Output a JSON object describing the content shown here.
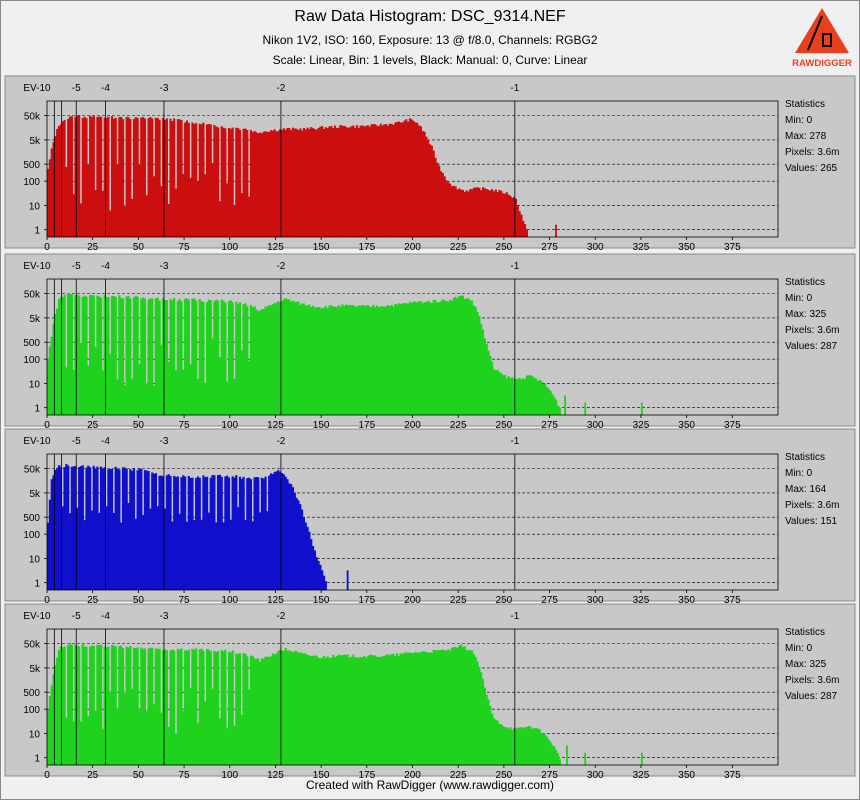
{
  "title": "Raw Data Histogram: DSC_9314.NEF",
  "subtitle_1": "Nikon 1V2, ISO: 160, Exposure: 13 @ f/8.0, Channels: RGBG2",
  "subtitle_2": "Scale: Linear, Bin: 1 levels, Black: Manual: 0, Curve: Linear",
  "footer": "Created with RawDigger (www.rawdigger.com)",
  "logo": {
    "text": "RAWDIGGER",
    "color": "#e8401c"
  },
  "colors": {
    "plot_bg": "#c8c8c8",
    "red": "#cc0e0e",
    "green": "#1ed21e",
    "blue": "#1010cc",
    "page_bg": "#f0f0f0"
  },
  "chart_data": [
    {
      "type": "bar",
      "channel": "R",
      "color": "#cc0e0e",
      "xlim": [
        0,
        400
      ],
      "y_scale": "log",
      "ylim": [
        0.5,
        200000
      ],
      "x_ticks": [
        "0",
        "25",
        "50",
        "75",
        "100",
        "125",
        "150",
        "175",
        "200",
        "225",
        "250",
        "275",
        "300",
        "325",
        "350",
        "375"
      ],
      "y_ticks": [
        "1",
        "10",
        "100",
        "500",
        "5k",
        "50k"
      ],
      "ev_marks": [
        {
          "label": "EV-10",
          "x": 0
        },
        {
          "label": "-5",
          "x": 8
        },
        {
          "label": "-4",
          "x": 16
        },
        {
          "label": "-3",
          "x": 32
        },
        {
          "label": "-2",
          "x": 64
        },
        {
          "label": "-1",
          "x": 128
        }
      ],
      "ev_ref_levels": [
        4,
        8,
        16,
        32,
        64,
        128,
        256
      ],
      "envelope": [
        [
          0,
          300
        ],
        [
          2,
          2000
        ],
        [
          4,
          8000
        ],
        [
          6,
          20000
        ],
        [
          8,
          30000
        ],
        [
          10,
          40000
        ],
        [
          15,
          48000
        ],
        [
          20,
          45000
        ],
        [
          30,
          44000
        ],
        [
          40,
          42000
        ],
        [
          50,
          40000
        ],
        [
          60,
          38000
        ],
        [
          70,
          34000
        ],
        [
          80,
          26000
        ],
        [
          90,
          20000
        ],
        [
          100,
          16000
        ],
        [
          110,
          14000
        ],
        [
          112,
          12000
        ],
        [
          114,
          10000
        ],
        [
          120,
          12000
        ],
        [
          130,
          14000
        ],
        [
          140,
          14000
        ],
        [
          150,
          16000
        ],
        [
          160,
          18000
        ],
        [
          170,
          18000
        ],
        [
          180,
          20000
        ],
        [
          190,
          24000
        ],
        [
          198,
          34000
        ],
        [
          202,
          26000
        ],
        [
          206,
          10000
        ],
        [
          210,
          2500
        ],
        [
          214,
          400
        ],
        [
          218,
          120
        ],
        [
          222,
          60
        ],
        [
          228,
          40
        ],
        [
          235,
          50
        ],
        [
          240,
          48
        ],
        [
          246,
          40
        ],
        [
          252,
          30
        ],
        [
          256,
          18
        ],
        [
          259,
          4
        ],
        [
          262,
          1
        ],
        [
          264,
          0
        ]
      ],
      "dips": {
        "start": 10,
        "end": 112,
        "step": 4,
        "min": 6,
        "max": 700
      },
      "spikes": [
        {
          "x": 278,
          "count": 1
        }
      ],
      "statistics": {
        "heading": "Statistics",
        "min": "Min: 0",
        "max": "Max: 278",
        "pixels": "Pixels: 3.6m",
        "values": "Values: 265"
      }
    },
    {
      "type": "bar",
      "channel": "G",
      "color": "#1ed21e",
      "xlim": [
        0,
        400
      ],
      "y_scale": "log",
      "ylim": [
        0.5,
        200000
      ],
      "x_ticks": [
        "0",
        "25",
        "50",
        "75",
        "100",
        "125",
        "150",
        "175",
        "200",
        "225",
        "250",
        "275",
        "300",
        "325",
        "350",
        "375"
      ],
      "y_ticks": [
        "1",
        "10",
        "100",
        "500",
        "5k",
        "50k"
      ],
      "ev_marks": [
        {
          "label": "EV-10",
          "x": 0
        },
        {
          "label": "-5",
          "x": 8
        },
        {
          "label": "-4",
          "x": 16
        },
        {
          "label": "-3",
          "x": 32
        },
        {
          "label": "-2",
          "x": 64
        },
        {
          "label": "-1",
          "x": 128
        }
      ],
      "ev_ref_levels": [
        4,
        8,
        16,
        32,
        64,
        128,
        256
      ],
      "envelope": [
        [
          0,
          100
        ],
        [
          3,
          3000
        ],
        [
          6,
          30000
        ],
        [
          10,
          50000
        ],
        [
          15,
          45000
        ],
        [
          25,
          40000
        ],
        [
          40,
          38000
        ],
        [
          60,
          30000
        ],
        [
          80,
          28000
        ],
        [
          100,
          24000
        ],
        [
          112,
          15000
        ],
        [
          116,
          10000
        ],
        [
          125,
          22000
        ],
        [
          130,
          30000
        ],
        [
          140,
          18000
        ],
        [
          150,
          14000
        ],
        [
          160,
          16000
        ],
        [
          175,
          15000
        ],
        [
          190,
          17000
        ],
        [
          200,
          22000
        ],
        [
          210,
          24000
        ],
        [
          220,
          28000
        ],
        [
          226,
          40000
        ],
        [
          232,
          26000
        ],
        [
          236,
          6000
        ],
        [
          240,
          400
        ],
        [
          244,
          40
        ],
        [
          250,
          20
        ],
        [
          256,
          15
        ],
        [
          264,
          20
        ],
        [
          270,
          12
        ],
        [
          275,
          5
        ],
        [
          278,
          2
        ],
        [
          280,
          1
        ],
        [
          282,
          0
        ]
      ],
      "dips": {
        "start": 10,
        "end": 112,
        "step": 4,
        "min": 8,
        "max": 900
      },
      "spikes": [
        {
          "x": 283,
          "count": 2
        },
        {
          "x": 294,
          "count": 1
        },
        {
          "x": 325,
          "count": 1
        }
      ],
      "statistics": {
        "heading": "Statistics",
        "min": "Min: 0",
        "max": "Max: 325",
        "pixels": "Pixels: 3.6m",
        "values": "Values: 287"
      }
    },
    {
      "type": "bar",
      "channel": "B",
      "color": "#1010cc",
      "xlim": [
        0,
        400
      ],
      "y_scale": "log",
      "ylim": [
        0.5,
        200000
      ],
      "x_ticks": [
        "0",
        "25",
        "50",
        "75",
        "100",
        "125",
        "150",
        "175",
        "200",
        "225",
        "250",
        "275",
        "300",
        "325",
        "350",
        "375"
      ],
      "y_ticks": [
        "1",
        "10",
        "100",
        "500",
        "5k",
        "50k"
      ],
      "ev_marks": [
        {
          "label": "EV-10",
          "x": 0
        },
        {
          "label": "-5",
          "x": 8
        },
        {
          "label": "-4",
          "x": 16
        },
        {
          "label": "-3",
          "x": 32
        },
        {
          "label": "-2",
          "x": 64
        },
        {
          "label": "-1",
          "x": 128
        }
      ],
      "ev_ref_levels": [
        4,
        8,
        16,
        32,
        64,
        128,
        256
      ],
      "envelope": [
        [
          0,
          300
        ],
        [
          2,
          20000
        ],
        [
          5,
          60000
        ],
        [
          10,
          70000
        ],
        [
          20,
          60000
        ],
        [
          30,
          55000
        ],
        [
          40,
          50000
        ],
        [
          50,
          45000
        ],
        [
          60,
          30000
        ],
        [
          70,
          25000
        ],
        [
          80,
          22000
        ],
        [
          90,
          24000
        ],
        [
          100,
          25000
        ],
        [
          110,
          20000
        ],
        [
          115,
          20000
        ],
        [
          120,
          24000
        ],
        [
          126,
          45000
        ],
        [
          130,
          25000
        ],
        [
          134,
          8000
        ],
        [
          138,
          1500
        ],
        [
          142,
          200
        ],
        [
          146,
          20
        ],
        [
          150,
          3
        ],
        [
          152,
          1
        ],
        [
          154,
          0
        ]
      ],
      "dips": {
        "start": 8,
        "end": 122,
        "step": 4,
        "min": 300,
        "max": 2000
      },
      "spikes": [
        {
          "x": 164,
          "count": 2
        }
      ],
      "statistics": {
        "heading": "Statistics",
        "min": "Min: 0",
        "max": "Max: 164",
        "pixels": "Pixels: 3.6m",
        "values": "Values: 151"
      }
    },
    {
      "type": "bar",
      "channel": "G2",
      "color": "#1ed21e",
      "xlim": [
        0,
        400
      ],
      "y_scale": "log",
      "ylim": [
        0.5,
        200000
      ],
      "x_ticks": [
        "0",
        "25",
        "50",
        "75",
        "100",
        "125",
        "150",
        "175",
        "200",
        "225",
        "250",
        "275",
        "300",
        "325",
        "350",
        "375"
      ],
      "y_ticks": [
        "1",
        "10",
        "100",
        "500",
        "5k",
        "50k"
      ],
      "ev_marks": [
        {
          "label": "EV-10",
          "x": 0
        },
        {
          "label": "-5",
          "x": 8
        },
        {
          "label": "-4",
          "x": 16
        },
        {
          "label": "-3",
          "x": 32
        },
        {
          "label": "-2",
          "x": 64
        },
        {
          "label": "-1",
          "x": 128
        }
      ],
      "ev_ref_levels": [
        4,
        8,
        16,
        32,
        64,
        128,
        256
      ],
      "envelope": [
        [
          0,
          100
        ],
        [
          3,
          3000
        ],
        [
          6,
          30000
        ],
        [
          10,
          50000
        ],
        [
          15,
          45000
        ],
        [
          25,
          40000
        ],
        [
          40,
          38000
        ],
        [
          60,
          30000
        ],
        [
          80,
          28000
        ],
        [
          100,
          24000
        ],
        [
          112,
          15000
        ],
        [
          116,
          10000
        ],
        [
          125,
          22000
        ],
        [
          130,
          30000
        ],
        [
          140,
          18000
        ],
        [
          150,
          14000
        ],
        [
          160,
          16000
        ],
        [
          175,
          15000
        ],
        [
          190,
          17000
        ],
        [
          200,
          22000
        ],
        [
          210,
          24000
        ],
        [
          220,
          28000
        ],
        [
          226,
          40000
        ],
        [
          232,
          26000
        ],
        [
          236,
          6000
        ],
        [
          240,
          400
        ],
        [
          244,
          40
        ],
        [
          250,
          20
        ],
        [
          256,
          15
        ],
        [
          264,
          20
        ],
        [
          270,
          12
        ],
        [
          275,
          5
        ],
        [
          278,
          2
        ],
        [
          280,
          1
        ],
        [
          282,
          0
        ]
      ],
      "dips": {
        "start": 10,
        "end": 112,
        "step": 4,
        "min": 8,
        "max": 900
      },
      "spikes": [
        {
          "x": 284,
          "count": 2
        },
        {
          "x": 294,
          "count": 1
        },
        {
          "x": 325,
          "count": 1
        }
      ],
      "statistics": {
        "heading": "Statistics",
        "min": "Min: 0",
        "max": "Max: 325",
        "pixels": "Pixels: 3.6m",
        "values": "Values: 287"
      }
    }
  ]
}
